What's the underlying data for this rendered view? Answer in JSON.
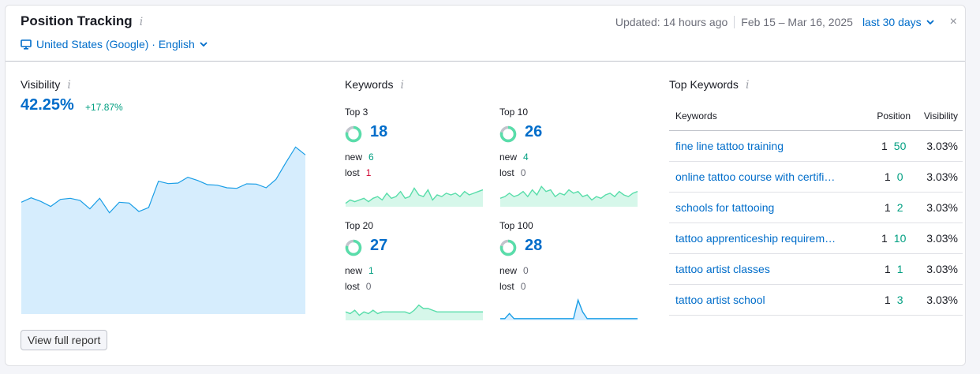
{
  "header": {
    "title": "Position Tracking",
    "info": "i",
    "region": "United States (Google) · English",
    "updated": "Updated: 14 hours ago",
    "date_range": "Feb 15 – Mar 16, 2025",
    "period": "last 30 days",
    "close": "×"
  },
  "visibility": {
    "label": "Visibility",
    "value": "42.25%",
    "delta": "+17.87%",
    "series": [
      42.5,
      44.2,
      42.8,
      40.9,
      43.6,
      44.0,
      43.2,
      40.0,
      44.0,
      38.5,
      42.5,
      42.2,
      39.0,
      40.5,
      50.5,
      49.6,
      49.8,
      52.0,
      50.8,
      49.2,
      49.0,
      48.0,
      47.8,
      49.5,
      49.4,
      48.0,
      51.2,
      57.5,
      63.5,
      60.5
    ],
    "color": "#1a9ee6"
  },
  "keywords": {
    "label": "Keywords",
    "new_label": "new",
    "lost_label": "lost",
    "blocks": [
      {
        "label": "Top 3",
        "value": "18",
        "new": "6",
        "lost": "1",
        "new_color": "g",
        "lost_color": "r",
        "spark": [
          2,
          4,
          3,
          4,
          5,
          3,
          5,
          6,
          4,
          8,
          5,
          6,
          9,
          5,
          6,
          11,
          7,
          6,
          10,
          4,
          7,
          6,
          8,
          7,
          8,
          6,
          9,
          7,
          8,
          9,
          10
        ]
      },
      {
        "label": "Top 10",
        "value": "26",
        "new": "4",
        "lost": "0",
        "new_color": "g",
        "lost_color": "gr",
        "spark": [
          5,
          6,
          8,
          6,
          7,
          9,
          6,
          10,
          7,
          12,
          9,
          10,
          6,
          8,
          7,
          10,
          8,
          9,
          6,
          7,
          4,
          6,
          5,
          7,
          8,
          6,
          9,
          7,
          6,
          8,
          9
        ]
      },
      {
        "label": "Top 20",
        "value": "27",
        "new": "1",
        "lost": "0",
        "new_color": "g",
        "lost_color": "gr",
        "spark": [
          5,
          4,
          6,
          3,
          5,
          4,
          6,
          4,
          5,
          5,
          5,
          5,
          5,
          5,
          4,
          6,
          9,
          7,
          7,
          6,
          5,
          5,
          5,
          5,
          5,
          5,
          5,
          5,
          5,
          5,
          5
        ]
      },
      {
        "label": "Top 100",
        "value": "28",
        "new": "0",
        "lost": "0",
        "new_color": "gr",
        "lost_color": "gr",
        "spark": [
          1,
          1,
          4,
          1,
          1,
          1,
          1,
          1,
          1,
          1,
          1,
          1,
          1,
          1,
          1,
          1,
          1,
          12,
          5,
          1,
          1,
          1,
          1,
          1,
          1,
          1,
          1,
          1,
          1,
          1,
          1
        ]
      }
    ]
  },
  "top_keywords": {
    "label": "Top Keywords",
    "columns": [
      "Keywords",
      "Position",
      "Visibility"
    ],
    "rows": [
      {
        "keyword": "fine line tattoo training",
        "prev": "1",
        "pos": "50",
        "vis": "3.03%"
      },
      {
        "keyword": "online tattoo course with certificate",
        "prev": "1",
        "pos": "0",
        "vis": "3.03%"
      },
      {
        "keyword": "schools for tattooing",
        "prev": "1",
        "pos": "2",
        "vis": "3.03%"
      },
      {
        "keyword": "tattoo apprenticeship requirements",
        "prev": "1",
        "pos": "10",
        "vis": "3.03%"
      },
      {
        "keyword": "tattoo artist classes",
        "prev": "1",
        "pos": "1",
        "vis": "3.03%"
      },
      {
        "keyword": "tattoo artist school",
        "prev": "1",
        "pos": "3",
        "vis": "3.03%"
      }
    ]
  },
  "footer": {
    "button": "View full report"
  }
}
